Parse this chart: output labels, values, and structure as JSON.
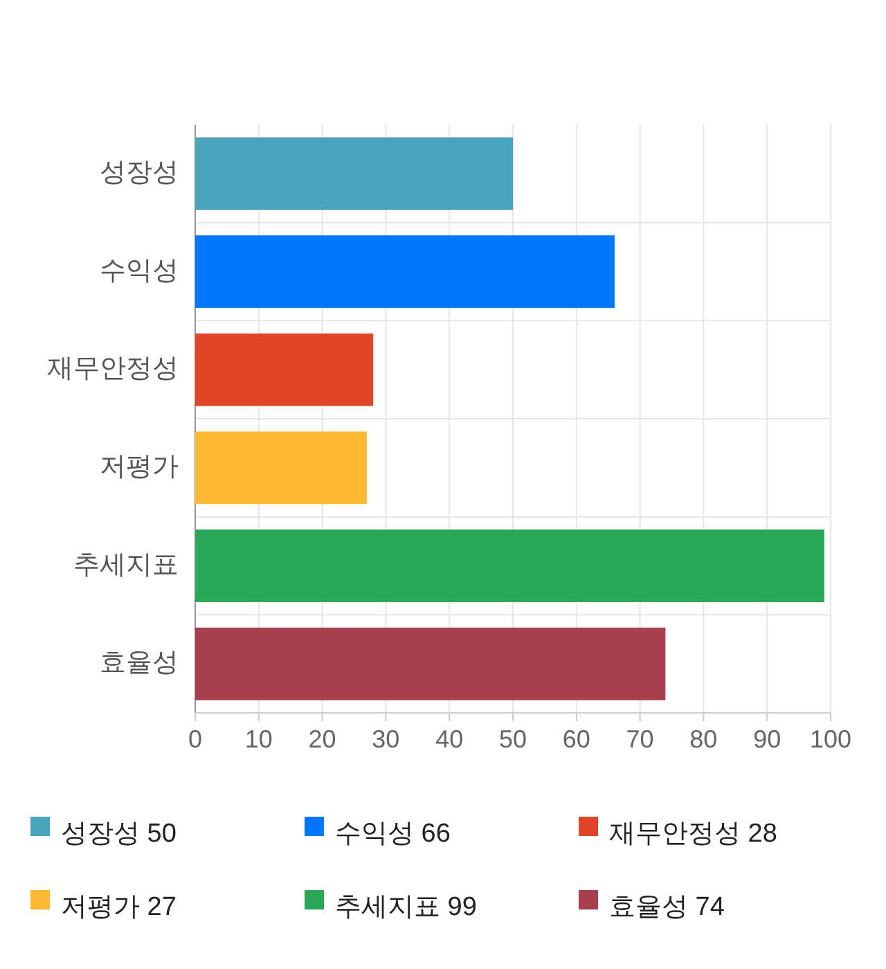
{
  "chart_data": {
    "type": "bar",
    "orientation": "horizontal",
    "stacked": true,
    "categories": [
      "성장성",
      "수익성",
      "재무안정성",
      "저평가",
      "추세지표",
      "효율성"
    ],
    "series": [
      {
        "name": "성장성 50",
        "color": "#4ba3bc",
        "values": [
          50,
          null,
          null,
          null,
          null,
          null
        ]
      },
      {
        "name": "수익성 66",
        "color": "#0077ff",
        "values": [
          null,
          66,
          null,
          null,
          null,
          null
        ]
      },
      {
        "name": "재무안정성 28",
        "color": "#e04525",
        "values": [
          null,
          null,
          28,
          null,
          null,
          null
        ]
      },
      {
        "name": "저평가 27",
        "color": "#ffb833",
        "values": [
          null,
          null,
          null,
          27,
          null,
          null
        ]
      },
      {
        "name": "추세지표 99",
        "color": "#27a854",
        "values": [
          null,
          null,
          null,
          null,
          99,
          null
        ]
      },
      {
        "name": "효율성 74",
        "color": "#a8404f",
        "values": [
          null,
          null,
          null,
          null,
          null,
          74
        ]
      }
    ],
    "xlim": [
      0,
      100
    ],
    "xticks": [
      0,
      10,
      20,
      30,
      40,
      50,
      60,
      70,
      80,
      90,
      100
    ],
    "grid": true,
    "legend": "bottom"
  }
}
